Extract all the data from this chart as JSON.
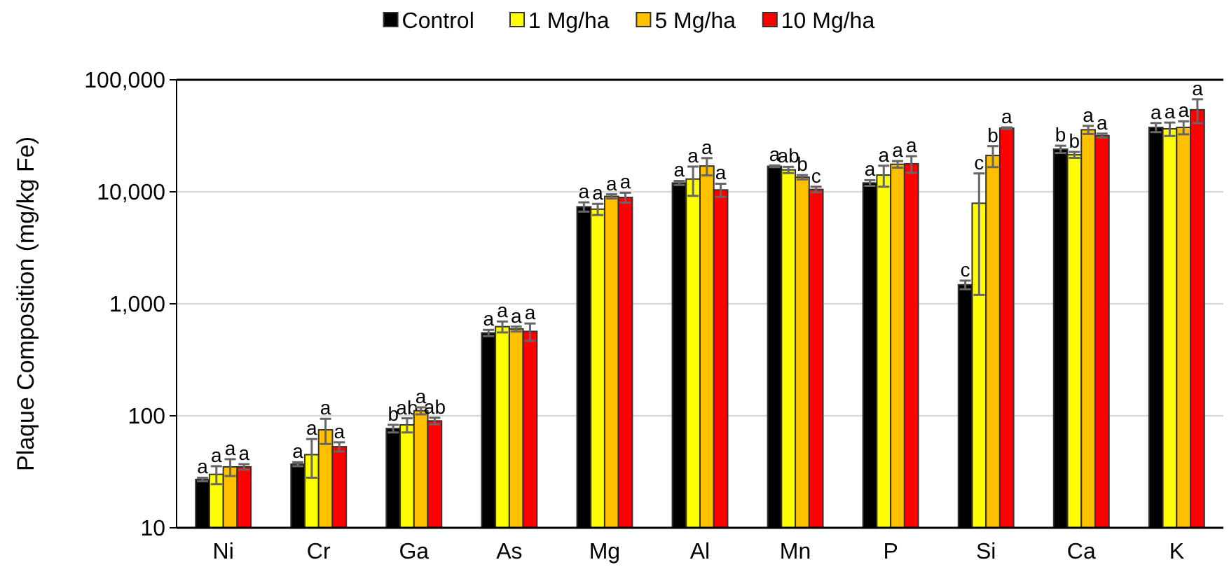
{
  "chart_data": {
    "type": "bar",
    "ylabel": "Plaque Composition (mg/kg Fe)",
    "log": true,
    "ylim": [
      10,
      100000
    ],
    "yticks": [
      10,
      100,
      {
        "value": 1000,
        "label": "1,000"
      },
      {
        "value": 10000,
        "label": "10,000"
      },
      {
        "value": 100000,
        "label": "100,000"
      }
    ],
    "grid": "y",
    "legend": "top",
    "categories": [
      "Ni",
      "Cr",
      "Ga",
      "As",
      "Mg",
      "Al",
      "Mn",
      "P",
      "Si",
      "Ca",
      "K"
    ],
    "series": [
      {
        "name": "Control",
        "color": "#000000",
        "values": [
          27,
          37,
          77,
          550,
          7350,
          12000,
          16900,
          12000,
          1480,
          24000,
          37600
        ],
        "errors": [
          1,
          1.5,
          6,
          35,
          700,
          500,
          300,
          700,
          130,
          1800,
          3500
        ],
        "value_labels": [
          "a",
          "a",
          "b",
          "a",
          "a",
          "a",
          "a",
          "a",
          "c",
          "b",
          "a"
        ]
      },
      {
        "name": "1 Mg/ha",
        "color": "#ffff00",
        "values": [
          30,
          45,
          83,
          625,
          7000,
          13000,
          15700,
          14100,
          7900,
          21400,
          36500
        ],
        "errors": [
          5.5,
          17,
          12,
          70,
          800,
          3800,
          1000,
          3000,
          6700,
          1300,
          5000
        ],
        "value_labels": [
          "a",
          "a",
          "ab",
          "a",
          "a",
          "a",
          "ab",
          "a",
          "c",
          "b",
          "a"
        ]
      },
      {
        "name": "5 Mg/ha",
        "color": "#ffc000",
        "values": [
          35,
          75,
          111,
          596,
          9100,
          17000,
          13500,
          17600,
          21100,
          35800,
          37600
        ],
        "errors": [
          6,
          19,
          8,
          30,
          400,
          3000,
          600,
          1200,
          4500,
          3000,
          5000
        ],
        "value_labels": [
          "a",
          "a",
          "a",
          "a",
          "a",
          "a",
          "b",
          "a",
          "b",
          "a",
          "a"
        ]
      },
      {
        "name": "10 Mg/ha",
        "color": "#ff0000",
        "values": [
          35,
          53,
          90,
          567,
          8900,
          10400,
          10500,
          17800,
          37000,
          31800,
          54000
        ],
        "errors": [
          2,
          5,
          6,
          100,
          900,
          1400,
          600,
          3000,
          600,
          1300,
          13000
        ],
        "value_labels": [
          "a",
          "a",
          "ab",
          "a",
          "a",
          "a",
          "c",
          "a",
          "a",
          "a",
          "a"
        ]
      }
    ]
  }
}
